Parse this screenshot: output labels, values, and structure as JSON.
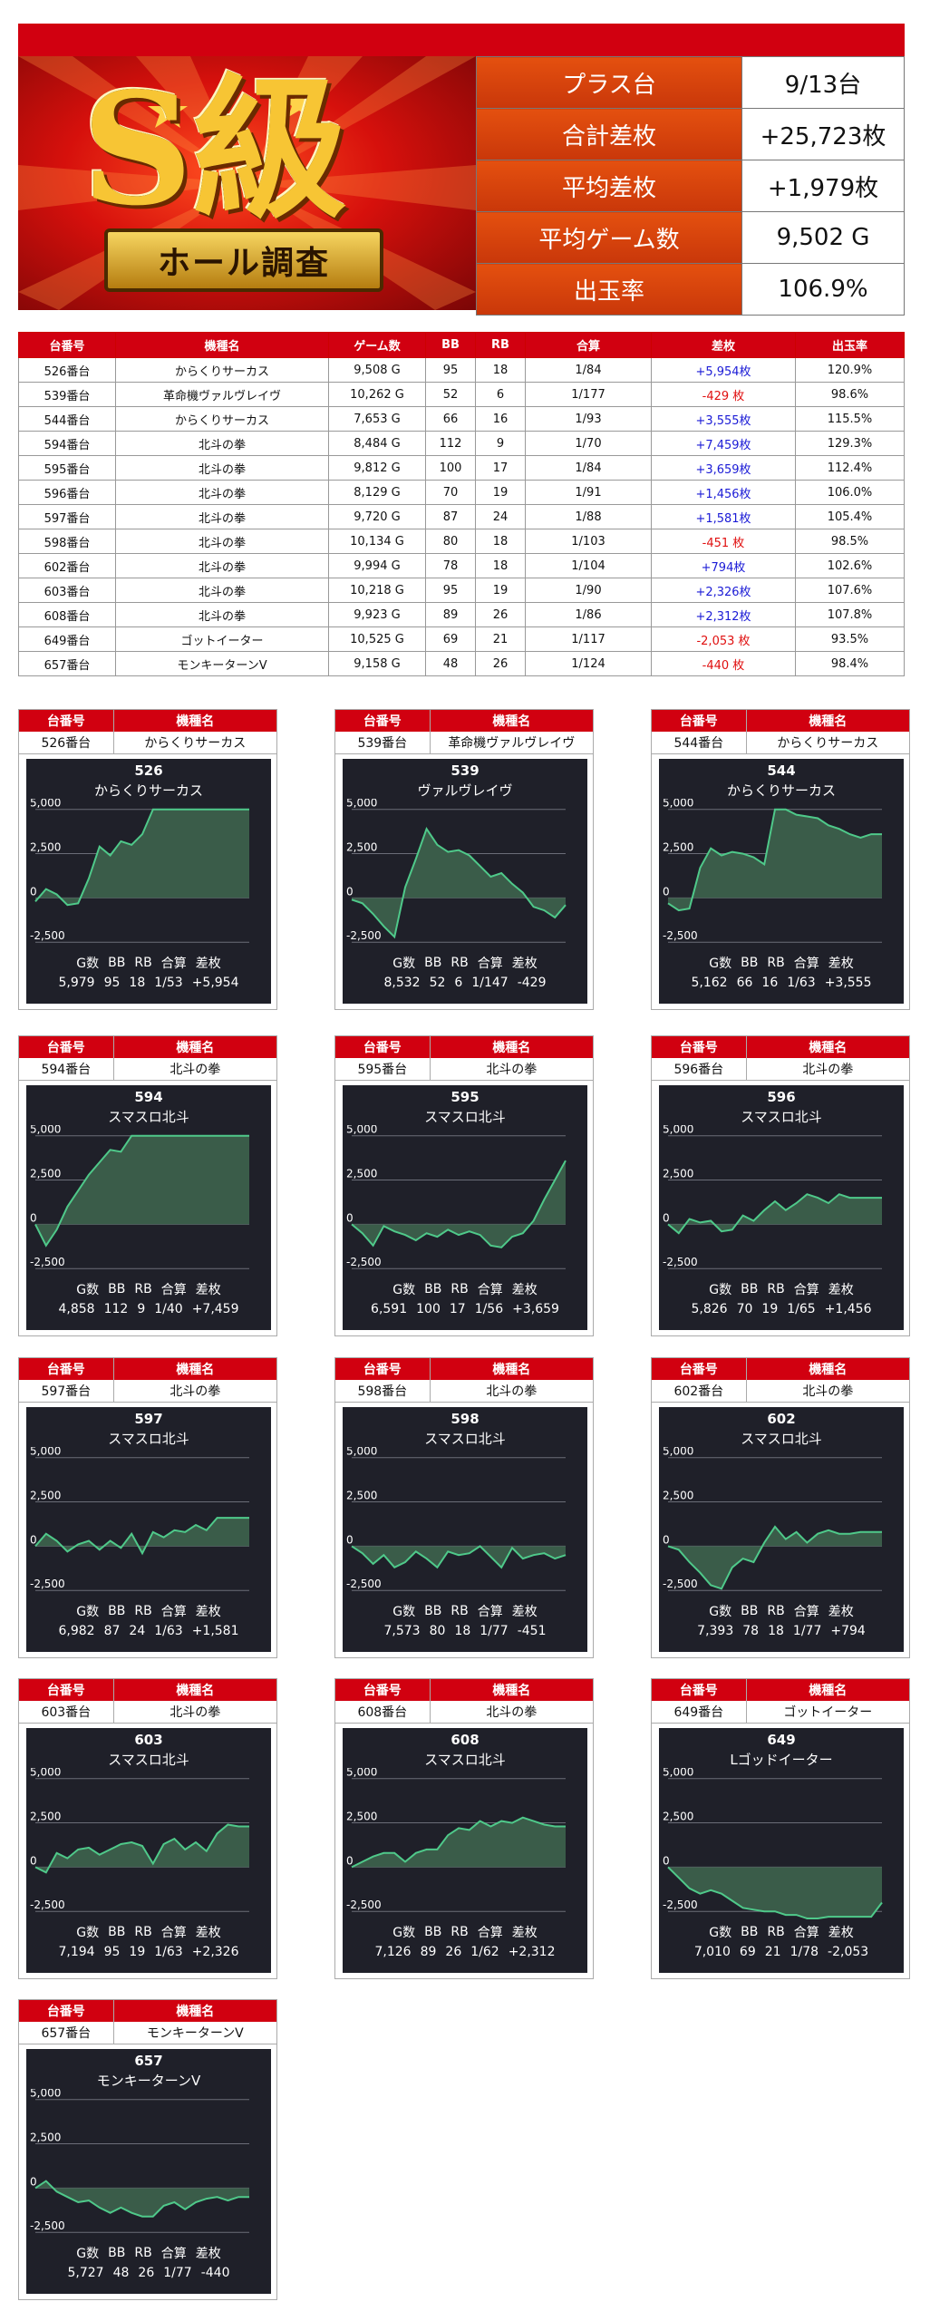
{
  "summary": {
    "logo_text": "S級",
    "logo_ribbon": "ホール調査",
    "rows": [
      {
        "label": "プラス台",
        "value": "9/13台"
      },
      {
        "label": "合計差枚",
        "value": "+25,723枚"
      },
      {
        "label": "平均差枚",
        "value": "+1,979枚"
      },
      {
        "label": "平均ゲーム数",
        "value": "9,502 G"
      },
      {
        "label": "出玉率",
        "value": "106.9%"
      }
    ]
  },
  "table": {
    "headers": [
      "台番号",
      "機種名",
      "ゲーム数",
      "BB",
      "RB",
      "合算",
      "差枚",
      "出玉率"
    ],
    "rows": [
      {
        "no": "526番台",
        "model": "からくりサーカス",
        "games": "9,508 G",
        "bb": "95",
        "rb": "18",
        "combined": "1/84",
        "diff": "+5,954枚",
        "rate": "120.9%",
        "sign": "pos"
      },
      {
        "no": "539番台",
        "model": "革命機ヴァルヴレイヴ",
        "games": "10,262 G",
        "bb": "52",
        "rb": "6",
        "combined": "1/177",
        "diff": "-429 枚",
        "rate": "98.6%",
        "sign": "neg"
      },
      {
        "no": "544番台",
        "model": "からくりサーカス",
        "games": "7,653 G",
        "bb": "66",
        "rb": "16",
        "combined": "1/93",
        "diff": "+3,555枚",
        "rate": "115.5%",
        "sign": "pos"
      },
      {
        "no": "594番台",
        "model": "北斗の拳",
        "games": "8,484 G",
        "bb": "112",
        "rb": "9",
        "combined": "1/70",
        "diff": "+7,459枚",
        "rate": "129.3%",
        "sign": "pos"
      },
      {
        "no": "595番台",
        "model": "北斗の拳",
        "games": "9,812 G",
        "bb": "100",
        "rb": "17",
        "combined": "1/84",
        "diff": "+3,659枚",
        "rate": "112.4%",
        "sign": "pos"
      },
      {
        "no": "596番台",
        "model": "北斗の拳",
        "games": "8,129 G",
        "bb": "70",
        "rb": "19",
        "combined": "1/91",
        "diff": "+1,456枚",
        "rate": "106.0%",
        "sign": "pos"
      },
      {
        "no": "597番台",
        "model": "北斗の拳",
        "games": "9,720 G",
        "bb": "87",
        "rb": "24",
        "combined": "1/88",
        "diff": "+1,581枚",
        "rate": "105.4%",
        "sign": "pos"
      },
      {
        "no": "598番台",
        "model": "北斗の拳",
        "games": "10,134 G",
        "bb": "80",
        "rb": "18",
        "combined": "1/103",
        "diff": "-451 枚",
        "rate": "98.5%",
        "sign": "neg"
      },
      {
        "no": "602番台",
        "model": "北斗の拳",
        "games": "9,994 G",
        "bb": "78",
        "rb": "18",
        "combined": "1/104",
        "diff": "+794枚",
        "rate": "102.6%",
        "sign": "pos"
      },
      {
        "no": "603番台",
        "model": "北斗の拳",
        "games": "10,218 G",
        "bb": "95",
        "rb": "19",
        "combined": "1/90",
        "diff": "+2,326枚",
        "rate": "107.6%",
        "sign": "pos"
      },
      {
        "no": "608番台",
        "model": "北斗の拳",
        "games": "9,923 G",
        "bb": "89",
        "rb": "26",
        "combined": "1/86",
        "diff": "+2,312枚",
        "rate": "107.8%",
        "sign": "pos"
      },
      {
        "no": "649番台",
        "model": "ゴットイーター",
        "games": "10,525 G",
        "bb": "69",
        "rb": "21",
        "combined": "1/117",
        "diff": "-2,053 枚",
        "rate": "93.5%",
        "sign": "neg"
      },
      {
        "no": "657番台",
        "model": "モンキーターンV",
        "games": "9,158 G",
        "bb": "48",
        "rb": "26",
        "combined": "1/124",
        "diff": "-440 枚",
        "rate": "98.4%",
        "sign": "neg"
      }
    ]
  },
  "card_labels": {
    "no": "台番号",
    "model": "機種名",
    "stat_headers": [
      "G数",
      "BB",
      "RB",
      "合算",
      "差枚"
    ]
  },
  "cards": [
    {
      "no": "526番台",
      "model": "からくりサーカス",
      "num": "526",
      "title": "からくりサーカス",
      "g": "5,979",
      "bb": "95",
      "rb": "18",
      "combined": "1/53",
      "diff": "+5,954"
    },
    {
      "no": "539番台",
      "model": "革命機ヴァルヴレイヴ",
      "num": "539",
      "title": "ヴァルヴレイヴ",
      "g": "8,532",
      "bb": "52",
      "rb": "6",
      "combined": "1/147",
      "diff": "-429"
    },
    {
      "no": "544番台",
      "model": "からくりサーカス",
      "num": "544",
      "title": "からくりサーカス",
      "g": "5,162",
      "bb": "66",
      "rb": "16",
      "combined": "1/63",
      "diff": "+3,555"
    },
    {
      "no": "594番台",
      "model": "北斗の拳",
      "num": "594",
      "title": "スマスロ北斗",
      "g": "4,858",
      "bb": "112",
      "rb": "9",
      "combined": "1/40",
      "diff": "+7,459"
    },
    {
      "no": "595番台",
      "model": "北斗の拳",
      "num": "595",
      "title": "スマスロ北斗",
      "g": "6,591",
      "bb": "100",
      "rb": "17",
      "combined": "1/56",
      "diff": "+3,659"
    },
    {
      "no": "596番台",
      "model": "北斗の拳",
      "num": "596",
      "title": "スマスロ北斗",
      "g": "5,826",
      "bb": "70",
      "rb": "19",
      "combined": "1/65",
      "diff": "+1,456"
    },
    {
      "no": "597番台",
      "model": "北斗の拳",
      "num": "597",
      "title": "スマスロ北斗",
      "g": "6,982",
      "bb": "87",
      "rb": "24",
      "combined": "1/63",
      "diff": "+1,581"
    },
    {
      "no": "598番台",
      "model": "北斗の拳",
      "num": "598",
      "title": "スマスロ北斗",
      "g": "7,573",
      "bb": "80",
      "rb": "18",
      "combined": "1/77",
      "diff": "-451"
    },
    {
      "no": "602番台",
      "model": "北斗の拳",
      "num": "602",
      "title": "スマスロ北斗",
      "g": "7,393",
      "bb": "78",
      "rb": "18",
      "combined": "1/77",
      "diff": "+794"
    },
    {
      "no": "603番台",
      "model": "北斗の拳",
      "num": "603",
      "title": "スマスロ北斗",
      "g": "7,194",
      "bb": "95",
      "rb": "19",
      "combined": "1/63",
      "diff": "+2,326"
    },
    {
      "no": "608番台",
      "model": "北斗の拳",
      "num": "608",
      "title": "スマスロ北斗",
      "g": "7,126",
      "bb": "89",
      "rb": "26",
      "combined": "1/62",
      "diff": "+2,312"
    },
    {
      "no": "649番台",
      "model": "ゴットイーター",
      "num": "649",
      "title": "Lゴッドイーター",
      "g": "7,010",
      "bb": "69",
      "rb": "21",
      "combined": "1/78",
      "diff": "-2,053"
    },
    {
      "no": "657番台",
      "model": "モンキーターンV",
      "num": "657",
      "title": "モンキーターンV",
      "g": "5,727",
      "bb": "48",
      "rb": "26",
      "combined": "1/77",
      "diff": "-440"
    }
  ],
  "chart_data": [
    {
      "type": "area",
      "ylim": [
        -3000,
        5600
      ],
      "yticks": [
        "5,000",
        "2,500",
        "0",
        "-2,500"
      ],
      "values": [
        -200,
        500,
        200,
        -400,
        -300,
        1100,
        2900,
        2400,
        3200,
        3000,
        3600,
        5000,
        5000,
        5000,
        5000,
        5000,
        5000,
        5000,
        5000,
        5000,
        5000
      ]
    },
    {
      "type": "area",
      "ylim": [
        -3000,
        5600
      ],
      "yticks": [
        "5,000",
        "2,500",
        "0",
        "-2,500"
      ],
      "values": [
        -100,
        -300,
        -900,
        -1600,
        -2200,
        600,
        2200,
        3900,
        3000,
        2600,
        2700,
        2400,
        1800,
        1200,
        1400,
        800,
        300,
        -500,
        -700,
        -1100,
        -400
      ]
    },
    {
      "type": "area",
      "ylim": [
        -3000,
        5600
      ],
      "yticks": [
        "5,000",
        "2,500",
        "0",
        "-2,500"
      ],
      "values": [
        -300,
        -700,
        -600,
        1700,
        2800,
        2400,
        2600,
        2500,
        2300,
        1900,
        5000,
        5000,
        4700,
        4600,
        4500,
        4100,
        3900,
        3600,
        3400,
        3600,
        3600
      ]
    },
    {
      "type": "area",
      "ylim": [
        -3000,
        5600
      ],
      "yticks": [
        "5,000",
        "2,500",
        "0",
        "-2,500"
      ],
      "values": [
        0,
        -1200,
        -300,
        1000,
        1900,
        2800,
        3500,
        4200,
        4100,
        5000,
        5000,
        5000,
        5000,
        5000,
        5000,
        5000,
        5000,
        5000,
        5000,
        5000,
        5000
      ]
    },
    {
      "type": "area",
      "ylim": [
        -3000,
        5600
      ],
      "yticks": [
        "5,000",
        "2,500",
        "0",
        "-2,500"
      ],
      "values": [
        0,
        -500,
        -1200,
        -100,
        -400,
        -600,
        -900,
        -500,
        -700,
        -300,
        -600,
        -400,
        -600,
        -1200,
        -1300,
        -700,
        -500,
        200,
        1400,
        2500,
        3600
      ]
    },
    {
      "type": "area",
      "ylim": [
        -3000,
        5600
      ],
      "yticks": [
        "5,000",
        "2,500",
        "0",
        "-2,500"
      ],
      "values": [
        0,
        -500,
        300,
        100,
        200,
        -400,
        -300,
        500,
        200,
        800,
        1300,
        800,
        1200,
        1700,
        1500,
        1200,
        1700,
        1500,
        1500,
        1500,
        1500
      ]
    },
    {
      "type": "area",
      "ylim": [
        -3000,
        5600
      ],
      "yticks": [
        "5,000",
        "2,500",
        "0",
        "-2,500"
      ],
      "values": [
        0,
        700,
        300,
        -300,
        100,
        300,
        -200,
        300,
        -100,
        700,
        -400,
        800,
        500,
        900,
        800,
        1200,
        900,
        1600,
        1600,
        1600,
        1600
      ]
    },
    {
      "type": "area",
      "ylim": [
        -3000,
        5600
      ],
      "yticks": [
        "5,000",
        "2,500",
        "0",
        "-2,500"
      ],
      "values": [
        0,
        -400,
        -1000,
        -500,
        -1200,
        -900,
        -300,
        -700,
        -1200,
        -300,
        -500,
        -400,
        0,
        -600,
        -1200,
        -100,
        -700,
        -500,
        -400,
        -700,
        -500
      ]
    },
    {
      "type": "area",
      "ylim": [
        -3000,
        5600
      ],
      "yticks": [
        "5,000",
        "2,500",
        "0",
        "-2,500"
      ],
      "values": [
        0,
        -200,
        -900,
        -1500,
        -2200,
        -2400,
        -1200,
        -700,
        -900,
        200,
        1100,
        400,
        800,
        200,
        700,
        900,
        700,
        700,
        800,
        800,
        800
      ]
    },
    {
      "type": "area",
      "ylim": [
        -3000,
        5600
      ],
      "yticks": [
        "5,000",
        "2,500",
        "0",
        "-2,500"
      ],
      "values": [
        0,
        -300,
        800,
        500,
        1000,
        1100,
        700,
        1000,
        1300,
        1400,
        1200,
        200,
        1300,
        1600,
        1000,
        1400,
        900,
        1900,
        2400,
        2300,
        2300
      ]
    },
    {
      "type": "area",
      "ylim": [
        -3000,
        5600
      ],
      "yticks": [
        "5,000",
        "2,500",
        "0",
        "-2,500"
      ],
      "values": [
        0,
        300,
        600,
        800,
        800,
        300,
        800,
        1000,
        1000,
        1800,
        2200,
        2100,
        2600,
        2300,
        2600,
        2500,
        2800,
        2600,
        2400,
        2300,
        2300
      ]
    },
    {
      "type": "area",
      "ylim": [
        -3000,
        5600
      ],
      "yticks": [
        "5,000",
        "2,500",
        "0",
        "-2,500"
      ],
      "values": [
        0,
        -600,
        -1200,
        -1500,
        -1300,
        -1500,
        -1900,
        -2300,
        -2400,
        -2500,
        -2500,
        -2700,
        -2700,
        -2900,
        -2900,
        -2800,
        -2800,
        -2800,
        -2800,
        -2800,
        -2000
      ]
    },
    {
      "type": "area",
      "ylim": [
        -3000,
        5600
      ],
      "yticks": [
        "5,000",
        "2,500",
        "0",
        "-2,500"
      ],
      "values": [
        0,
        400,
        -200,
        -500,
        -800,
        -700,
        -1100,
        -1400,
        -1100,
        -1400,
        -1600,
        -1600,
        -1000,
        -800,
        -1200,
        -800,
        -600,
        -500,
        -700,
        -500,
        -500
      ]
    }
  ]
}
